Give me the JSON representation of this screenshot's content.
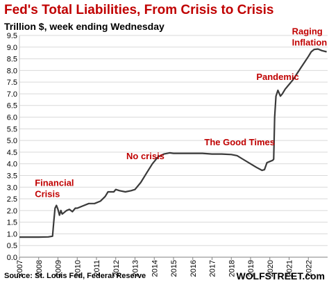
{
  "title": "Fed's Total Liabilities, From Crisis to Crisis",
  "subtitle": "Trillion $, week ending Wednesday",
  "source": "Source: St. Louis Fed, Federal Reserve",
  "brand": "WOLFSTREET.com",
  "colors": {
    "title": "#c00000",
    "line": "#3a3a3a",
    "annotation": "#c00000",
    "grid": "#d9d9d9"
  },
  "chart_data": {
    "type": "line",
    "title": "Fed's Total Liabilities, From Crisis to Crisis",
    "subtitle": "Trillion $, week ending Wednesday",
    "ylim": [
      0,
      9.5
    ],
    "xlim": [
      2007,
      2023
    ],
    "grid": true,
    "y_ticks": [
      "0.0",
      "0.5",
      "1.0",
      "1.5",
      "2.0",
      "2.5",
      "3.0",
      "3.5",
      "4.0",
      "4.5",
      "5.0",
      "5.5",
      "6.0",
      "6.5",
      "7.0",
      "7.5",
      "8.0",
      "8.5",
      "9.0",
      "9.5"
    ],
    "x_ticks": [
      "2007",
      "2008",
      "2009",
      "2010",
      "2011",
      "2012",
      "2013",
      "2014",
      "2015",
      "2016",
      "2017",
      "2018",
      "2019",
      "2020",
      "2021",
      "2022"
    ],
    "series": [
      {
        "x": [
          2007.0,
          2007.5,
          2008.0,
          2008.5,
          2008.72,
          2008.78,
          2008.85,
          2008.92,
          2009.0,
          2009.08,
          2009.15,
          2009.22,
          2009.3,
          2009.45,
          2009.6,
          2009.75,
          2009.9,
          2010.0,
          2010.3,
          2010.6,
          2010.9,
          2011.2,
          2011.45,
          2011.6,
          2011.9,
          2012.0,
          2012.2,
          2012.5,
          2012.8,
          2013.0,
          2013.3,
          2013.6,
          2013.9,
          2014.2,
          2014.5,
          2014.8,
          2015.0,
          2015.5,
          2016.0,
          2016.5,
          2017.0,
          2017.5,
          2018.0,
          2018.3,
          2018.6,
          2019.0,
          2019.3,
          2019.6,
          2019.72,
          2019.85,
          2020.0,
          2020.15,
          2020.2,
          2020.25,
          2020.32,
          2020.42,
          2020.55,
          2020.65,
          2020.8,
          2021.0,
          2021.2,
          2021.4,
          2021.6,
          2021.8,
          2022.0,
          2022.15,
          2022.3,
          2022.5,
          2022.7,
          2022.95
        ],
        "y": [
          0.86,
          0.86,
          0.86,
          0.87,
          0.9,
          1.5,
          2.1,
          2.22,
          2.05,
          1.8,
          2.0,
          1.85,
          1.9,
          2.0,
          2.05,
          1.95,
          2.1,
          2.1,
          2.2,
          2.3,
          2.3,
          2.4,
          2.6,
          2.8,
          2.8,
          2.9,
          2.85,
          2.8,
          2.85,
          2.9,
          3.2,
          3.6,
          4.0,
          4.3,
          4.42,
          4.47,
          4.45,
          4.45,
          4.45,
          4.45,
          4.42,
          4.42,
          4.4,
          4.35,
          4.2,
          4.0,
          3.85,
          3.72,
          3.75,
          4.05,
          4.1,
          4.15,
          4.2,
          6.0,
          6.9,
          7.15,
          6.9,
          7.0,
          7.2,
          7.4,
          7.6,
          7.85,
          8.1,
          8.35,
          8.6,
          8.8,
          8.9,
          8.92,
          8.85,
          8.8
        ]
      }
    ],
    "annotations": [
      {
        "lines": [
          "Financial",
          "Crisis"
        ],
        "x": 2007.8,
        "y": 3.05
      },
      {
        "lines": [
          "No crisis"
        ],
        "x": 2012.55,
        "y": 4.2
      },
      {
        "lines": [
          "The Good Times"
        ],
        "x": 2016.6,
        "y": 4.8
      },
      {
        "lines": [
          "Pandemic"
        ],
        "x": 2019.3,
        "y": 7.6
      },
      {
        "lines": [
          "Raging",
          "Inflation"
        ],
        "x": 2021.15,
        "y": 9.55
      }
    ]
  }
}
